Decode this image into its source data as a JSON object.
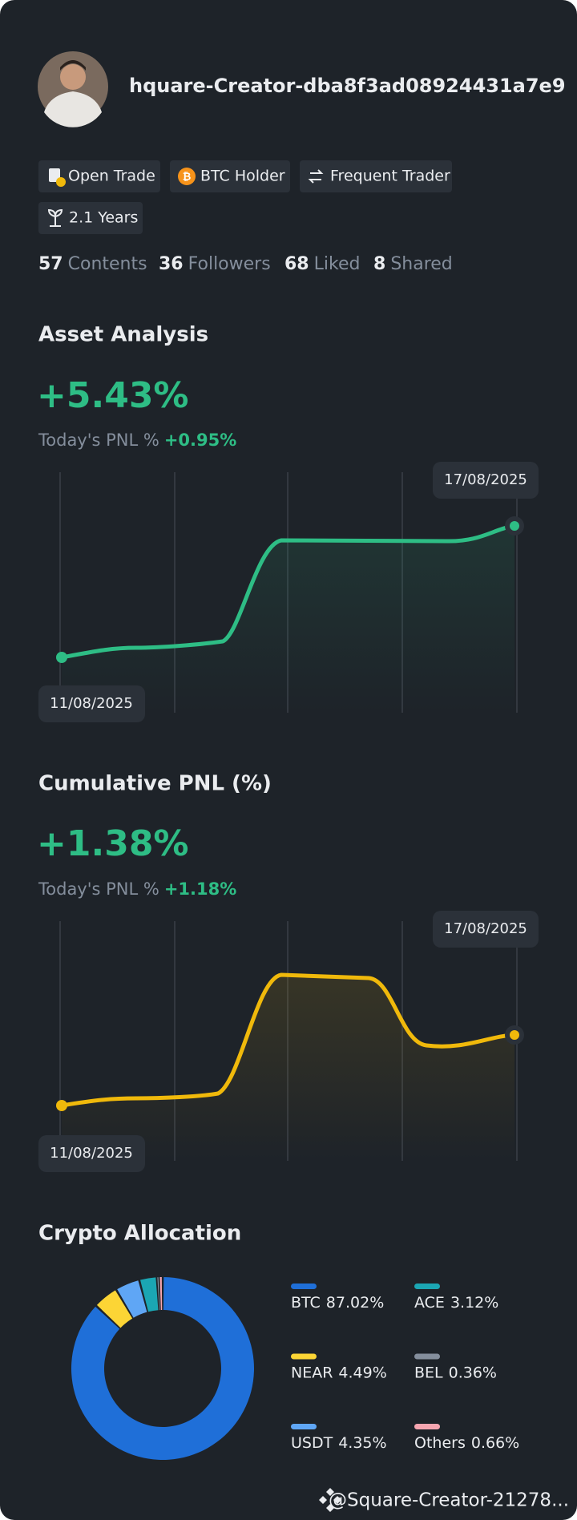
{
  "profile": {
    "username": "hquare-Creator-dba8f3ad08924431a7e9"
  },
  "badges": [
    "Open Trade",
    "BTC Holder",
    "Frequent Trader",
    "2.1 Years"
  ],
  "stats": [
    {
      "value": 57,
      "label": "Contents"
    },
    {
      "value": 36,
      "label": "Followers"
    },
    {
      "value": 68,
      "label": "Liked"
    },
    {
      "value": 8,
      "label": "Shared"
    }
  ],
  "asset_analysis": {
    "title": "Asset Analysis",
    "value": "+5.43%",
    "pnl_label": "Today's PNL %",
    "pnl_value": "+0.95%",
    "start_date": "11/08/2025",
    "end_date": "17/08/2025"
  },
  "cumulative_pnl": {
    "title": "Cumulative PNL (%)",
    "value": "+1.38%",
    "pnl_label": "Today's PNL %",
    "pnl_value": "+1.18%",
    "start_date": "11/08/2025",
    "end_date": "17/08/2025"
  },
  "chart_data": {
    "type": "pie",
    "title": "Crypto Allocation",
    "categories": [
      "BTC",
      "NEAR",
      "USDT",
      "ACE",
      "BEL",
      "Others"
    ],
    "values": [
      87.02,
      4.49,
      4.35,
      3.12,
      0.36,
      0.66
    ],
    "value_labels": [
      "87.02%",
      "4.49%",
      "4.35%",
      "3.12%",
      "0.36%",
      "0.66%"
    ],
    "colors": [
      "#1f6fd8",
      "#fcd535",
      "#5fa6f5",
      "#1ba6b3",
      "#848e9c",
      "#f6a5b0"
    ]
  },
  "footer": "@Square-Creator-21278..."
}
